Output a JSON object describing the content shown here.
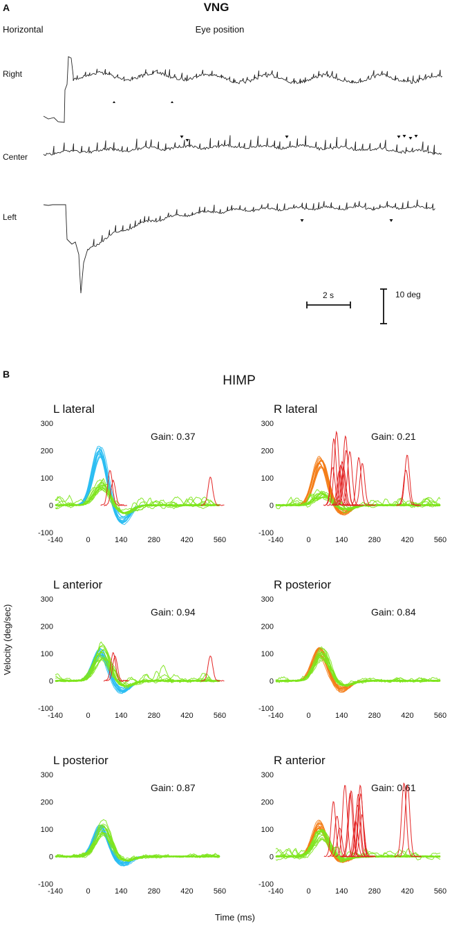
{
  "colors": {
    "trace": "#222222",
    "head_left": "#29bdf2",
    "head_right": "#f47c16",
    "eye": "#7ee51e",
    "saccade": "#e32424"
  },
  "panel_a": {
    "label": "A",
    "title": "VNG",
    "mode_label": "Horizontal",
    "signal_label": "Eye position",
    "traces": [
      {
        "name": "Right"
      },
      {
        "name": "Center"
      },
      {
        "name": "Left"
      }
    ],
    "time_scale_label": "2 s",
    "amplitude_scale_label": "10 deg"
  },
  "panel_b": {
    "label": "B",
    "title": "HIMP",
    "ylabel": "Velocity (deg/sec)",
    "xlabel": "Time (ms)"
  },
  "chart_data": [
    {
      "type": "line",
      "title": "L lateral",
      "gain_label": "Gain: 0.37",
      "head_color": "head_left",
      "head_peak": 215,
      "head_peak_time": 50,
      "eye_peak": 80,
      "undershoot": -60,
      "saccades": "few",
      "xlim": [
        -140,
        560
      ],
      "ylim": [
        -100,
        300
      ],
      "xticks": [
        "-140",
        "0",
        "140",
        "280",
        "420",
        "560"
      ],
      "yticks": [
        "300",
        "200",
        "100",
        "0",
        "-100"
      ]
    },
    {
      "type": "line",
      "title": "R lateral",
      "gain_label": "Gain: 0.21",
      "head_color": "head_right",
      "head_peak": 175,
      "head_peak_time": 50,
      "eye_peak": 40,
      "undershoot": -30,
      "saccades": "many",
      "xlim": [
        -140,
        560
      ],
      "ylim": [
        -100,
        300
      ],
      "xticks": [
        "-140",
        "0",
        "140",
        "280",
        "420",
        "560"
      ],
      "yticks": [
        "300",
        "200",
        "100",
        "0",
        "-100"
      ]
    },
    {
      "type": "line",
      "title": "L anterior",
      "gain_label": "Gain: 0.94",
      "head_color": "head_left",
      "head_peak": 115,
      "head_peak_time": 50,
      "eye_peak": 110,
      "undershoot": -40,
      "saccades": "few",
      "xlim": [
        -140,
        560
      ],
      "ylim": [
        -100,
        300
      ],
      "xticks": [
        "-140",
        "0",
        "140",
        "280",
        "420",
        "560"
      ],
      "yticks": [
        "300",
        "200",
        "100",
        "0",
        "-100"
      ]
    },
    {
      "type": "line",
      "title": "R posterior",
      "gain_label": "Gain: 0.84",
      "head_color": "head_right",
      "head_peak": 120,
      "head_peak_time": 45,
      "eye_peak": 105,
      "undershoot": -35,
      "saccades": "none",
      "xlim": [
        -140,
        560
      ],
      "ylim": [
        -100,
        300
      ],
      "xticks": [
        "-140",
        "0",
        "140",
        "280",
        "420",
        "560"
      ],
      "yticks": [
        "300",
        "200",
        "100",
        "0",
        "-100"
      ]
    },
    {
      "type": "line",
      "title": "L posterior",
      "gain_label": "Gain: 0.87",
      "head_color": "head_left",
      "head_peak": 115,
      "head_peak_time": 55,
      "eye_peak": 110,
      "undershoot": -30,
      "saccades": "none",
      "xlim": [
        -140,
        560
      ],
      "ylim": [
        -100,
        300
      ],
      "xticks": [
        "-140",
        "0",
        "140",
        "280",
        "420",
        "560"
      ],
      "yticks": [
        "300",
        "200",
        "100",
        "0",
        "-100"
      ]
    },
    {
      "type": "line",
      "title": "R anterior",
      "gain_label": "Gain: 0.61",
      "head_color": "head_right",
      "head_peak": 130,
      "head_peak_time": 45,
      "eye_peak": 85,
      "undershoot": -20,
      "saccades": "many",
      "xlim": [
        -140,
        560
      ],
      "ylim": [
        -100,
        300
      ],
      "xticks": [
        "-140",
        "0",
        "140",
        "280",
        "420",
        "560"
      ],
      "yticks": [
        "300",
        "200",
        "100",
        "0",
        "-100"
      ]
    }
  ]
}
